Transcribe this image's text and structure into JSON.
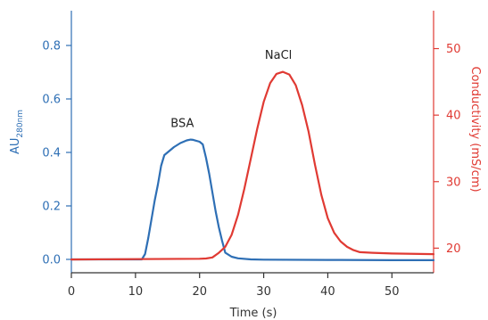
{
  "chart_data": {
    "type": "line",
    "xlabel": "Time (s)",
    "ylabel_left_main": "AU",
    "ylabel_left_sub": "280nm",
    "ylabel_right": "Conductivity (mS/cm)",
    "xlim": [
      0,
      56.5
    ],
    "ylim_left": [
      -0.05,
      0.93
    ],
    "ylim_right": [
      16.3,
      55.7
    ],
    "x_ticks": [
      "0",
      "10",
      "20",
      "30",
      "40",
      "50"
    ],
    "y_left_ticks": [
      "0.0",
      "0.2",
      "0.4",
      "0.6",
      "0.8"
    ],
    "y_right_ticks": [
      "20",
      "30",
      "40",
      "50"
    ],
    "grid": false,
    "legend": "none",
    "colors": {
      "absorbance": "#2e6fb5",
      "conductivity": "#e03a33",
      "axis": "#333333"
    },
    "annotations": [
      {
        "text": "BSA",
        "x": 17.3,
        "y_left": 0.495
      },
      {
        "text": "NaCl",
        "x": 32.3,
        "y_left": 0.75
      }
    ],
    "series": [
      {
        "axis": "left",
        "x": [
          0,
          10,
          11.0,
          11.5,
          12.0,
          12.5,
          13.0,
          13.5,
          14.0,
          14.5,
          15.0,
          16.0,
          17.0,
          18.0,
          18.6,
          19.0,
          20.0,
          20.5,
          21.0,
          21.5,
          22.0,
          22.5,
          23.0,
          23.5,
          24.0,
          25.0,
          26.0,
          28.0,
          30.0,
          40.0,
          50.0,
          56.5
        ],
        "values": [
          0.0,
          0.0,
          0.0,
          0.02,
          0.08,
          0.15,
          0.22,
          0.28,
          0.35,
          0.39,
          0.4,
          0.42,
          0.435,
          0.445,
          0.448,
          0.447,
          0.44,
          0.43,
          0.38,
          0.32,
          0.25,
          0.18,
          0.12,
          0.07,
          0.025,
          0.01,
          0.004,
          0.0,
          -0.001,
          -0.002,
          -0.003,
          -0.003
        ]
      },
      {
        "axis": "right",
        "x": [
          0,
          10,
          20.0,
          21.0,
          22.0,
          23.0,
          24.0,
          25.0,
          26.0,
          27.0,
          28.0,
          29.0,
          30.0,
          31.0,
          32.0,
          33.0,
          34.0,
          35.0,
          36.0,
          37.0,
          38.0,
          39.0,
          40.0,
          41.0,
          42.0,
          43.0,
          44.0,
          45.0,
          47.0,
          50.0,
          56.5
        ],
        "values": [
          18.3,
          18.35,
          18.4,
          18.45,
          18.6,
          19.3,
          20.2,
          22.0,
          25.0,
          29.0,
          33.5,
          38.0,
          42.0,
          44.8,
          46.2,
          46.5,
          46.1,
          44.5,
          41.5,
          37.5,
          32.5,
          28.0,
          24.5,
          22.3,
          21.0,
          20.2,
          19.7,
          19.4,
          19.3,
          19.2,
          19.1
        ]
      }
    ]
  }
}
